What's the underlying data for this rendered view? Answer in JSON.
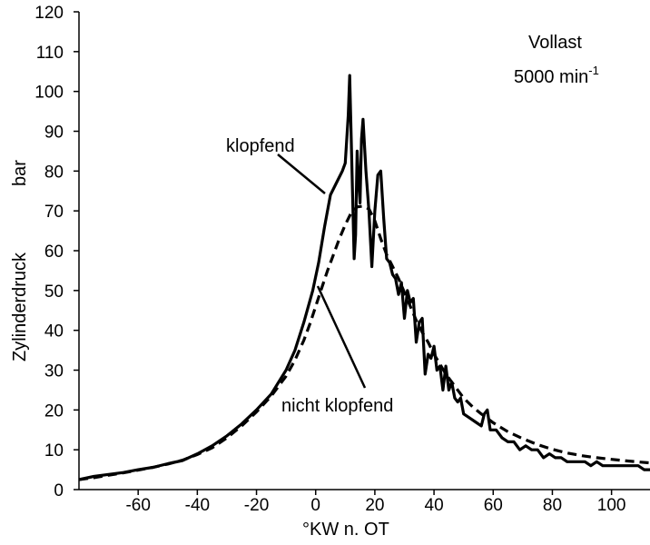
{
  "chart_data": {
    "type": "line",
    "title": "",
    "xlabel": "°KW n. OT",
    "ylabel_main": "Zylinderdruck",
    "ylabel_unit": "bar",
    "xlim": [
      -80,
      113
    ],
    "ylim": [
      0,
      120
    ],
    "x_ticks": [
      -60,
      -40,
      -20,
      0,
      20,
      40,
      60,
      80,
      100
    ],
    "y_ticks": [
      0,
      10,
      20,
      30,
      40,
      50,
      60,
      70,
      80,
      90,
      100,
      110,
      120
    ],
    "grid": false,
    "condition": {
      "line1": "Vollast",
      "line2_base": "5000 min",
      "line2_exp": "-1"
    },
    "series": [
      {
        "name": "klopfend",
        "style": "solid",
        "color": "#000000",
        "points": [
          [
            -80,
            2.5
          ],
          [
            -75,
            3.3
          ],
          [
            -70,
            3.8
          ],
          [
            -65,
            4.3
          ],
          [
            -60,
            5
          ],
          [
            -55,
            5.6
          ],
          [
            -50,
            6.5
          ],
          [
            -45,
            7.3
          ],
          [
            -40,
            9
          ],
          [
            -35,
            11
          ],
          [
            -30,
            13.5
          ],
          [
            -25,
            16.5
          ],
          [
            -20,
            20
          ],
          [
            -15,
            24
          ],
          [
            -10,
            30
          ],
          [
            -7,
            35
          ],
          [
            -4,
            42
          ],
          [
            -1,
            50
          ],
          [
            1,
            57
          ],
          [
            3,
            66
          ],
          [
            5,
            74
          ],
          [
            7,
            77
          ],
          [
            9,
            80
          ],
          [
            10,
            82
          ],
          [
            11,
            94
          ],
          [
            11.5,
            104
          ],
          [
            12,
            89
          ],
          [
            12.5,
            73
          ],
          [
            13,
            58
          ],
          [
            13.5,
            64
          ],
          [
            14,
            85
          ],
          [
            14.5,
            78
          ],
          [
            15,
            72
          ],
          [
            15.5,
            88
          ],
          [
            16,
            93
          ],
          [
            17,
            80
          ],
          [
            18,
            70
          ],
          [
            19,
            56
          ],
          [
            20,
            70
          ],
          [
            21,
            79
          ],
          [
            22,
            80
          ],
          [
            23,
            68
          ],
          [
            24,
            58
          ],
          [
            25,
            57
          ],
          [
            26,
            54
          ],
          [
            27,
            53
          ],
          [
            28,
            49
          ],
          [
            29,
            52
          ],
          [
            30,
            43
          ],
          [
            31,
            50
          ],
          [
            32,
            47
          ],
          [
            33,
            48
          ],
          [
            34,
            37
          ],
          [
            35,
            42
          ],
          [
            36,
            43
          ],
          [
            37,
            29
          ],
          [
            38,
            34
          ],
          [
            39,
            33
          ],
          [
            40,
            36
          ],
          [
            41,
            30
          ],
          [
            42,
            31
          ],
          [
            43,
            25
          ],
          [
            44,
            31
          ],
          [
            45,
            25
          ],
          [
            46,
            27
          ],
          [
            47,
            23
          ],
          [
            48,
            22
          ],
          [
            49,
            23
          ],
          [
            50,
            19
          ],
          [
            52,
            18
          ],
          [
            54,
            17
          ],
          [
            56,
            16
          ],
          [
            57,
            19
          ],
          [
            58,
            20
          ],
          [
            59,
            15
          ],
          [
            61,
            15
          ],
          [
            63,
            13
          ],
          [
            65,
            12
          ],
          [
            67,
            12
          ],
          [
            69,
            10
          ],
          [
            71,
            11
          ],
          [
            73,
            10
          ],
          [
            75,
            10
          ],
          [
            77,
            8
          ],
          [
            79,
            9
          ],
          [
            81,
            8
          ],
          [
            83,
            8
          ],
          [
            85,
            7
          ],
          [
            87,
            7
          ],
          [
            89,
            7
          ],
          [
            91,
            7
          ],
          [
            93,
            6
          ],
          [
            95,
            7
          ],
          [
            97,
            6
          ],
          [
            99,
            6
          ],
          [
            101,
            6
          ],
          [
            103,
            6
          ],
          [
            105,
            6
          ],
          [
            107,
            6
          ],
          [
            109,
            6
          ],
          [
            111,
            5
          ],
          [
            113,
            5
          ]
        ]
      },
      {
        "name": "nicht klopfend",
        "style": "dashed",
        "color": "#000000",
        "points": [
          [
            -80,
            2.5
          ],
          [
            -75,
            3
          ],
          [
            -70,
            3.6
          ],
          [
            -65,
            4.2
          ],
          [
            -60,
            4.9
          ],
          [
            -55,
            5.6
          ],
          [
            -50,
            6.4
          ],
          [
            -45,
            7.4
          ],
          [
            -40,
            8.8
          ],
          [
            -35,
            10.5
          ],
          [
            -30,
            13
          ],
          [
            -25,
            16
          ],
          [
            -20,
            19.5
          ],
          [
            -15,
            23.5
          ],
          [
            -10,
            28.5
          ],
          [
            -7,
            32.5
          ],
          [
            -4,
            37.5
          ],
          [
            -2,
            41.5
          ],
          [
            0,
            46
          ],
          [
            2,
            50.5
          ],
          [
            4,
            55
          ],
          [
            6,
            59
          ],
          [
            8,
            63
          ],
          [
            10,
            66.5
          ],
          [
            12,
            69.5
          ],
          [
            14,
            71
          ],
          [
            16,
            71.2
          ],
          [
            18,
            70.5
          ],
          [
            20,
            67.5
          ],
          [
            22,
            63
          ],
          [
            24,
            59
          ],
          [
            26,
            56
          ],
          [
            28,
            53
          ],
          [
            30,
            49.5
          ],
          [
            32,
            46
          ],
          [
            34,
            42.5
          ],
          [
            36,
            39.5
          ],
          [
            38,
            37
          ],
          [
            40,
            34
          ],
          [
            42,
            31.5
          ],
          [
            44,
            29
          ],
          [
            46,
            27
          ],
          [
            48,
            25
          ],
          [
            50,
            23
          ],
          [
            53,
            20.8
          ],
          [
            56,
            19
          ],
          [
            60,
            16.8
          ],
          [
            65,
            14.5
          ],
          [
            70,
            12.8
          ],
          [
            75,
            11.3
          ],
          [
            80,
            10.1
          ],
          [
            85,
            9.2
          ],
          [
            90,
            8.5
          ],
          [
            95,
            8
          ],
          [
            100,
            7.6
          ],
          [
            105,
            7.2
          ],
          [
            110,
            6.9
          ],
          [
            113,
            6.7
          ]
        ]
      }
    ],
    "annotations": [
      {
        "text": "klopfend",
        "series": "klopfend"
      },
      {
        "text": "nicht klopfend",
        "series": "nicht klopfend"
      }
    ]
  }
}
